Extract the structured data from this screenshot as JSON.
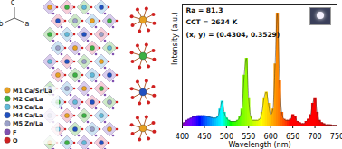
{
  "structure": {
    "axes": [
      "c",
      "b",
      "a"
    ],
    "legend": [
      {
        "label": "M1 Ca/Sr/La",
        "color": "#e8a020"
      },
      {
        "label": "M2 Ca/La",
        "color": "#3cb043"
      },
      {
        "label": "M3 Ca/La",
        "color": "#60b8d8"
      },
      {
        "label": "M4 Ca/La",
        "color": "#2050c0"
      },
      {
        "label": "M5 Zn/La",
        "color": "#9aa0c8"
      },
      {
        "label": "F",
        "color": "#8050b0"
      },
      {
        "label": "O",
        "color": "#d02020"
      }
    ]
  },
  "chart_data": {
    "type": "area",
    "x_label": "Wavelength (nm)",
    "y_label": "Intensity (a.u.)",
    "annotations": [
      "Ra = 81.3",
      "CCT = 2634 K",
      "(x, y) = (0.4304, 0.3529)"
    ],
    "x": [
      400,
      405,
      410,
      415,
      420,
      425,
      430,
      435,
      440,
      445,
      450,
      455,
      460,
      465,
      470,
      475,
      480,
      485,
      490,
      495,
      500,
      505,
      510,
      515,
      520,
      525,
      530,
      535,
      540,
      545,
      550,
      555,
      560,
      565,
      570,
      575,
      580,
      585,
      590,
      595,
      600,
      605,
      610,
      615,
      620,
      625,
      630,
      635,
      640,
      645,
      650,
      655,
      660,
      665,
      670,
      675,
      680,
      685,
      690,
      695,
      700,
      705,
      710,
      715,
      720,
      725,
      730,
      735,
      740,
      745,
      750
    ],
    "values": [
      0.02,
      0.03,
      0.05,
      0.06,
      0.07,
      0.08,
      0.085,
      0.09,
      0.09,
      0.09,
      0.09,
      0.085,
      0.08,
      0.075,
      0.07,
      0.07,
      0.08,
      0.15,
      0.22,
      0.12,
      0.07,
      0.05,
      0.04,
      0.04,
      0.04,
      0.05,
      0.08,
      0.15,
      0.45,
      0.6,
      0.25,
      0.08,
      0.05,
      0.05,
      0.05,
      0.06,
      0.12,
      0.25,
      0.3,
      0.2,
      0.1,
      0.15,
      0.55,
      1.0,
      0.4,
      0.12,
      0.06,
      0.05,
      0.05,
      0.06,
      0.1,
      0.08,
      0.04,
      0.03,
      0.02,
      0.02,
      0.04,
      0.06,
      0.1,
      0.2,
      0.25,
      0.12,
      0.05,
      0.03,
      0.02,
      0.01,
      0.01,
      0.01,
      0.005,
      0.005,
      0.005
    ],
    "xlim": [
      400,
      750
    ],
    "xticks": [
      400,
      450,
      500,
      550,
      600,
      650,
      700,
      750
    ],
    "ylim": [
      0,
      1.08
    ],
    "yticks": [],
    "tick_labels": "x",
    "grid": false
  }
}
